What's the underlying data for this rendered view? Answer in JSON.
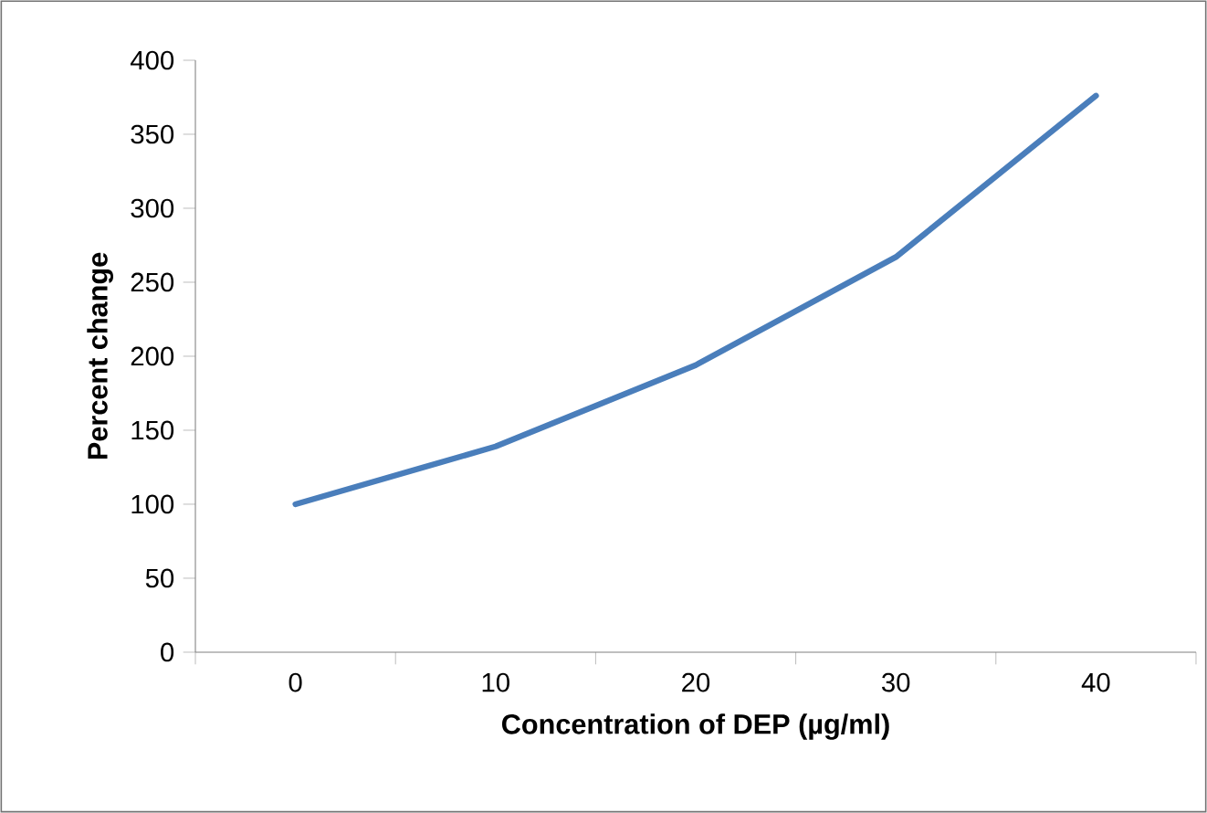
{
  "chart_data": {
    "type": "line",
    "xlabel": "Concentration of DEP (µg/ml)",
    "ylabel": "Percent change",
    "categories": [
      "0",
      "10",
      "20",
      "30",
      "40"
    ],
    "series": [
      {
        "color": "#4a7ebb",
        "values": [
          100,
          139,
          194,
          267,
          376
        ]
      }
    ],
    "ylim": [
      0,
      400
    ],
    "yticks": [
      0,
      50,
      100,
      150,
      200,
      250,
      300,
      350,
      400
    ],
    "grid": false,
    "marker": "none",
    "line_style": "solid"
  }
}
